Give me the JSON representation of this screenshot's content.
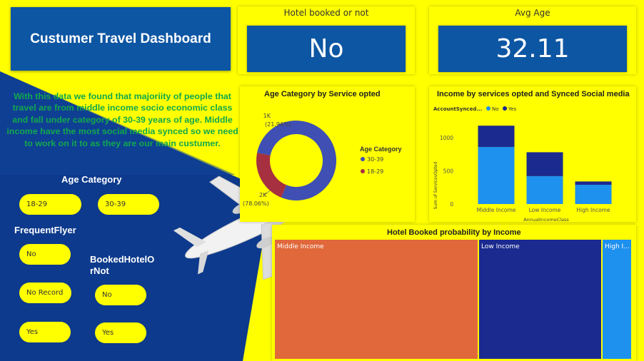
{
  "dashboard": {
    "title": "Custumer Travel Dashboard",
    "insight": "With this data we found that majoriity of people that travel are from middle income socio economic class and fall under category of 30-39 years of age. Middle income have the most social media synced so we need to work on it to as they are our main custumer."
  },
  "kpis": {
    "hotel": {
      "label": "Hotel booked or not",
      "value": "No"
    },
    "age": {
      "label": "Avg Age",
      "value": "32.11"
    }
  },
  "slicers": {
    "age_category": {
      "title": "Age Category",
      "options": [
        "18-29",
        "30-39"
      ]
    },
    "frequent_flyer": {
      "title": "FrequentFlyer",
      "options": [
        "No",
        "No Record",
        "Yes"
      ]
    },
    "booked_hotel": {
      "title": "BookedHotelOrNot",
      "title_line1": "BookedHotelO",
      "title_line2": "rNot",
      "options": [
        "No",
        "Yes"
      ]
    }
  },
  "colors": {
    "background": "#ffff00",
    "navy": "#0d3a8c",
    "kpi_blue": "#0d56a3",
    "donut_30_39": "#3f4fb3",
    "donut_18_29": "#a63040",
    "bar_no": "#1e90ee",
    "bar_yes": "#1b2a8f",
    "tm_middle": "#e0683a",
    "tm_low": "#1b2a8f",
    "tm_high": "#1e90ee",
    "insight_text": "#11a84e"
  },
  "chart_data": [
    {
      "type": "pie",
      "title": "Age Category by Service opted",
      "legend_title": "Age Category",
      "categories": [
        "30-39",
        "18-29"
      ],
      "values": [
        78.06,
        21.94
      ],
      "data_labels": [
        {
          "count": "2K",
          "percent": "(78.06%)"
        },
        {
          "count": "1K",
          "percent": "(21.94%)"
        }
      ]
    },
    {
      "type": "bar",
      "title": "Income by services opted and Synced Social media",
      "legend_title": "AccountSynced...",
      "xlabel": "AnnualIncomeClass",
      "ylabel": "Sum of ServicesOpted",
      "categories": [
        "Middle Income",
        "Low Income",
        "High Income"
      ],
      "yticks": [
        "0",
        "500",
        "1000"
      ],
      "ylim": [
        0,
        1300
      ],
      "series": [
        {
          "name": "No",
          "values": [
            860,
            420,
            290
          ]
        },
        {
          "name": "Yes",
          "values": [
            320,
            360,
            50
          ]
        }
      ]
    },
    {
      "type": "treemap",
      "title": "Hotel Booked probability by Income",
      "categories": [
        "Middle Income",
        "Low Income",
        "High I..."
      ],
      "values": [
        285,
        172,
        42
      ]
    }
  ]
}
